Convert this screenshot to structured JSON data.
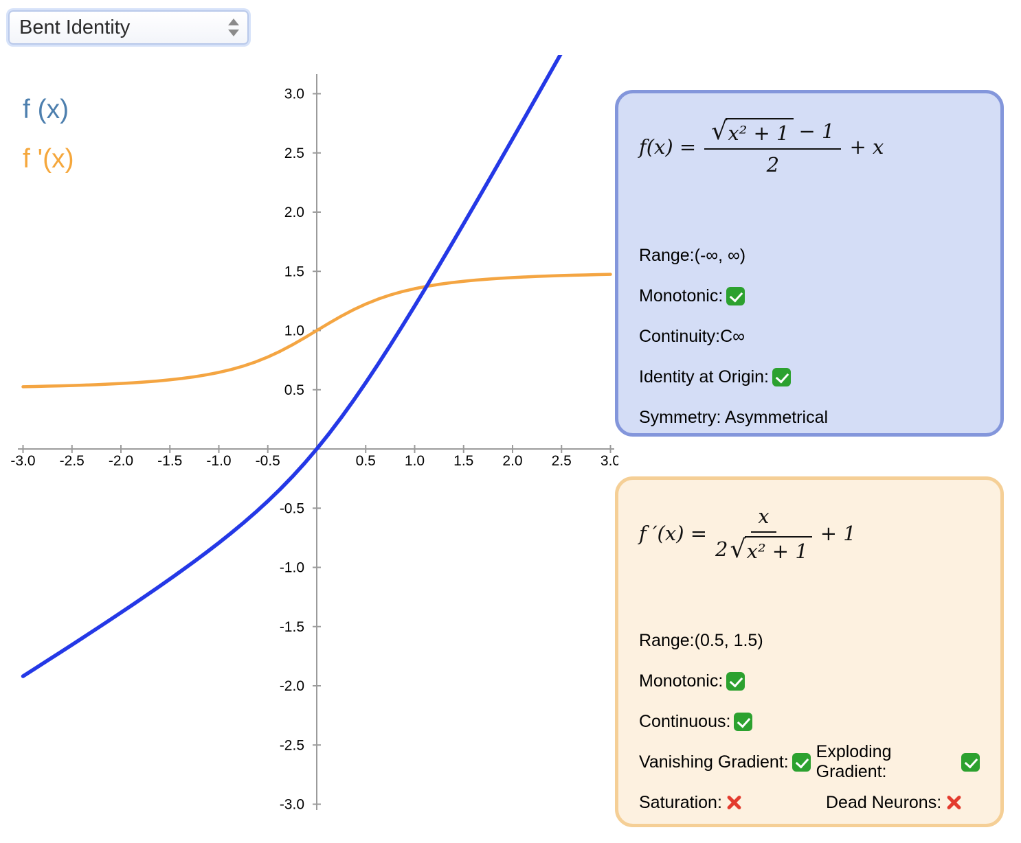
{
  "select": {
    "value": "Bent Identity"
  },
  "legend": {
    "f": {
      "label": "f (x)",
      "color": "#4d7fae"
    },
    "fprime": {
      "label": "f '(x)",
      "color": "#f5a73c"
    }
  },
  "chart_data": {
    "type": "line",
    "title": "",
    "xlabel": "",
    "ylabel": "",
    "xlim": [
      -3,
      3
    ],
    "ylim": [
      -3,
      3
    ],
    "grid": false,
    "legend_position": "top-left",
    "ticks": {
      "values": [
        -3,
        -2.5,
        -2,
        -1.5,
        -1,
        -0.5,
        0,
        0.5,
        1,
        1.5,
        2,
        2.5,
        3
      ],
      "labels": [
        "-3.0",
        "-2.5",
        "-2.0",
        "-1.5",
        "-1.0",
        "-0.5",
        "",
        "0.5",
        "1.0",
        "1.5",
        "2.0",
        "2.5",
        "3.0"
      ]
    },
    "x": [
      -3,
      -2.875,
      -2.75,
      -2.625,
      -2.5,
      -2.375,
      -2.25,
      -2.125,
      -2,
      -1.875,
      -1.75,
      -1.625,
      -1.5,
      -1.375,
      -1.25,
      -1.125,
      -1,
      -0.875,
      -0.75,
      -0.625,
      -0.5,
      -0.375,
      -0.25,
      -0.125,
      0,
      0.125,
      0.25,
      0.375,
      0.5,
      0.625,
      0.75,
      0.875,
      1,
      1.125,
      1.25,
      1.375,
      1.5,
      1.625,
      1.75,
      1.875,
      2,
      2.125,
      2.25,
      2.375,
      2.5,
      2.625,
      2.75,
      2.875,
      3
    ],
    "series": [
      {
        "id": "f",
        "name": "f (x) = (sqrt(x^2+1)-1)/2 + x",
        "color": "#2438e6",
        "width": 5.5,
        "values": [
          -1.9189,
          -1.853,
          -1.7869,
          -1.7205,
          -1.6537,
          -1.5865,
          -1.5189,
          -1.4507,
          -1.382,
          -1.3125,
          -1.2422,
          -1.171,
          -1.0986,
          -1.0249,
          -0.9496,
          -0.8724,
          -0.7929,
          -0.7106,
          -0.625,
          -0.5354,
          -0.441,
          -0.341,
          -0.2346,
          -0.1211,
          0,
          0.1289,
          0.2654,
          0.409,
          0.559,
          0.7146,
          0.875,
          1.0394,
          1.2071,
          1.3776,
          1.5504,
          1.7251,
          1.9014,
          2.079,
          2.2578,
          2.4375,
          2.618,
          2.7993,
          2.9811,
          3.1635,
          3.3463,
          3.5295,
          3.7131,
          3.897,
          4.0811
        ]
      },
      {
        "id": "fprime",
        "name": "f '(x) = x/(2 sqrt(x^2+1)) + 1",
        "color": "#f4a542",
        "width": 4.5,
        "values": [
          0.5257,
          0.5278,
          0.5301,
          0.5328,
          0.5358,
          0.5392,
          0.5431,
          0.5476,
          0.5528,
          0.5588,
          0.5659,
          0.5742,
          0.584,
          0.5956,
          0.6096,
          0.6263,
          0.6464,
          0.6707,
          0.7,
          0.735,
          0.7764,
          0.8244,
          0.8787,
          0.938,
          1,
          1.062,
          1.1213,
          1.1756,
          1.2236,
          1.265,
          1.3,
          1.3293,
          1.3536,
          1.3737,
          1.3904,
          1.4044,
          1.416,
          1.4258,
          1.4341,
          1.4412,
          1.4472,
          1.4524,
          1.4569,
          1.4608,
          1.4642,
          1.4672,
          1.4699,
          1.4722,
          1.4743
        ]
      }
    ]
  },
  "panel_f": {
    "formula": {
      "lhs": "f(x) =",
      "radical": "√",
      "radicand": "x² + 1",
      "num_tail": "− 1",
      "den": "2",
      "tail": "+ x"
    },
    "range": "Range:(-∞, ∞)",
    "monotonic": "Monotonic:",
    "continuity": "Continuity:C∞",
    "identity": "Identity at Origin:",
    "symmetry": "Symmetry: Asymmetrical"
  },
  "panel_fprime": {
    "formula": {
      "lhs": "f ′(x) =",
      "num": "x",
      "den_prefix": "2",
      "radical": "√",
      "radicand": "x² + 1",
      "tail": "+ 1"
    },
    "range": "Range:(0.5, 1.5)",
    "monotonic": "Monotonic:",
    "continuous": "Continuous:",
    "vanishing": "Vanishing Gradient:",
    "exploding": "Exploding Gradient:",
    "saturation": "Saturation:",
    "dead": "Dead Neurons:"
  },
  "colors": {
    "curve_f": "#2438e6",
    "curve_fprime": "#f4a542",
    "legend_f": "#4d7fae",
    "legend_fprime": "#f5a73c",
    "panel_f_bg": "#d4ddf6",
    "panel_f_border": "#8396db",
    "panel_fprime_bg": "#fdf1e0",
    "panel_fprime_border": "#f5cf96",
    "check_green": "#2ca12f",
    "cross_red": "#e33b2e",
    "axis": "#9b9b9b"
  }
}
